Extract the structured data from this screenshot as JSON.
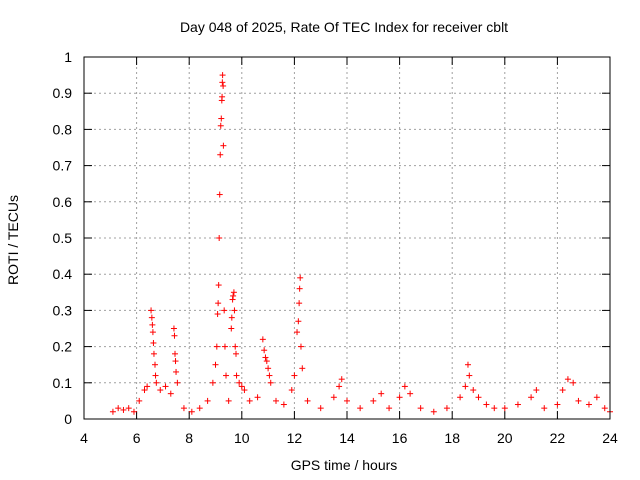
{
  "chart_data": {
    "type": "scatter",
    "title": "Day 048 of 2025, Rate Of TEC Index for receiver cblt",
    "xlabel": "GPS time / hours",
    "ylabel": "ROTI / TECUs",
    "xlim": [
      4,
      24
    ],
    "ylim": [
      0,
      1
    ],
    "xticks": [
      4,
      6,
      8,
      10,
      12,
      14,
      16,
      18,
      20,
      22,
      24
    ],
    "yticks": [
      0,
      0.1,
      0.2,
      0.3,
      0.4,
      0.5,
      0.6,
      0.7,
      0.8,
      0.9,
      1
    ],
    "ytick_labels": [
      "0",
      "0.1",
      "0.2",
      "0.3",
      "0.4",
      "0.5",
      "0.6",
      "0.7",
      "0.8",
      "0.9",
      "1"
    ],
    "grid": true,
    "marker": "+",
    "marker_color": "#ff0000",
    "series": [
      {
        "name": "ROTI",
        "points": [
          [
            5.1,
            0.02
          ],
          [
            5.3,
            0.03
          ],
          [
            5.5,
            0.025
          ],
          [
            5.7,
            0.03
          ],
          [
            5.9,
            0.02
          ],
          [
            6.1,
            0.05
          ],
          [
            6.3,
            0.08
          ],
          [
            6.4,
            0.09
          ],
          [
            6.55,
            0.3
          ],
          [
            6.58,
            0.28
          ],
          [
            6.6,
            0.26
          ],
          [
            6.62,
            0.24
          ],
          [
            6.64,
            0.21
          ],
          [
            6.66,
            0.18
          ],
          [
            6.7,
            0.15
          ],
          [
            6.72,
            0.12
          ],
          [
            6.75,
            0.1
          ],
          [
            6.9,
            0.08
          ],
          [
            7.1,
            0.09
          ],
          [
            7.3,
            0.07
          ],
          [
            7.42,
            0.25
          ],
          [
            7.44,
            0.23
          ],
          [
            7.46,
            0.18
          ],
          [
            7.48,
            0.16
          ],
          [
            7.5,
            0.13
          ],
          [
            7.55,
            0.1
          ],
          [
            7.8,
            0.03
          ],
          [
            8.1,
            0.02
          ],
          [
            8.4,
            0.03
          ],
          [
            8.7,
            0.05
          ],
          [
            8.9,
            0.1
          ],
          [
            9.0,
            0.15
          ],
          [
            9.05,
            0.2
          ],
          [
            9.08,
            0.29
          ],
          [
            9.1,
            0.32
          ],
          [
            9.12,
            0.37
          ],
          [
            9.14,
            0.5
          ],
          [
            9.16,
            0.62
          ],
          [
            9.18,
            0.73
          ],
          [
            9.2,
            0.81
          ],
          [
            9.22,
            0.83
          ],
          [
            9.24,
            0.88
          ],
          [
            9.25,
            0.89
          ],
          [
            9.26,
            0.93
          ],
          [
            9.27,
            0.95
          ],
          [
            9.29,
            0.92
          ],
          [
            9.3,
            0.755
          ],
          [
            9.33,
            0.3
          ],
          [
            9.36,
            0.2
          ],
          [
            9.4,
            0.12
          ],
          [
            9.5,
            0.05
          ],
          [
            9.6,
            0.25
          ],
          [
            9.62,
            0.28
          ],
          [
            9.65,
            0.33
          ],
          [
            9.67,
            0.34
          ],
          [
            9.7,
            0.35
          ],
          [
            9.72,
            0.3
          ],
          [
            9.75,
            0.2
          ],
          [
            9.78,
            0.18
          ],
          [
            9.8,
            0.12
          ],
          [
            9.9,
            0.1
          ],
          [
            10.0,
            0.09
          ],
          [
            10.1,
            0.08
          ],
          [
            10.3,
            0.05
          ],
          [
            10.6,
            0.06
          ],
          [
            10.8,
            0.22
          ],
          [
            10.85,
            0.19
          ],
          [
            10.9,
            0.17
          ],
          [
            10.95,
            0.16
          ],
          [
            11.0,
            0.14
          ],
          [
            11.05,
            0.12
          ],
          [
            11.1,
            0.1
          ],
          [
            11.3,
            0.05
          ],
          [
            11.6,
            0.04
          ],
          [
            11.9,
            0.08
          ],
          [
            12.0,
            0.12
          ],
          [
            12.1,
            0.24
          ],
          [
            12.15,
            0.27
          ],
          [
            12.18,
            0.32
          ],
          [
            12.2,
            0.36
          ],
          [
            12.22,
            0.39
          ],
          [
            12.25,
            0.2
          ],
          [
            12.3,
            0.14
          ],
          [
            12.5,
            0.05
          ],
          [
            13.0,
            0.03
          ],
          [
            13.5,
            0.06
          ],
          [
            13.7,
            0.09
          ],
          [
            13.8,
            0.11
          ],
          [
            14.0,
            0.05
          ],
          [
            14.5,
            0.03
          ],
          [
            15.0,
            0.05
          ],
          [
            15.3,
            0.07
          ],
          [
            15.6,
            0.03
          ],
          [
            16.0,
            0.06
          ],
          [
            16.2,
            0.09
          ],
          [
            16.4,
            0.07
          ],
          [
            16.8,
            0.03
          ],
          [
            17.3,
            0.02
          ],
          [
            17.8,
            0.03
          ],
          [
            18.3,
            0.06
          ],
          [
            18.5,
            0.09
          ],
          [
            18.6,
            0.15
          ],
          [
            18.65,
            0.12
          ],
          [
            18.8,
            0.08
          ],
          [
            19.0,
            0.06
          ],
          [
            19.3,
            0.04
          ],
          [
            19.6,
            0.03
          ],
          [
            20.0,
            0.03
          ],
          [
            20.5,
            0.04
          ],
          [
            21.0,
            0.06
          ],
          [
            21.2,
            0.08
          ],
          [
            21.5,
            0.03
          ],
          [
            22.0,
            0.04
          ],
          [
            22.2,
            0.08
          ],
          [
            22.4,
            0.11
          ],
          [
            22.6,
            0.1
          ],
          [
            22.8,
            0.05
          ],
          [
            23.2,
            0.04
          ],
          [
            23.5,
            0.06
          ],
          [
            23.8,
            0.03
          ],
          [
            24.0,
            0.02
          ]
        ]
      }
    ]
  }
}
